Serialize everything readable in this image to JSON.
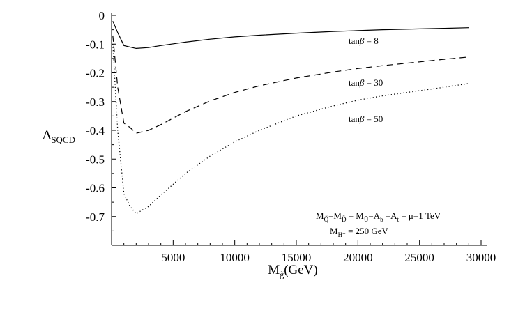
{
  "chart_data": {
    "type": "line",
    "xlabel_main": "M",
    "xlabel_sub": "g̃",
    "xlabel_unit": "(GeV)",
    "ylabel_main": "Δ",
    "ylabel_sub": "SQCD",
    "xlim": [
      0,
      30000
    ],
    "ylim": [
      -0.8,
      0
    ],
    "xticks": [
      5000,
      10000,
      15000,
      20000,
      25000,
      30000
    ],
    "yticks": [
      0,
      -0.1,
      -0.2,
      -0.3,
      -0.4,
      -0.5,
      -0.6,
      -0.7
    ],
    "grid": false,
    "series": [
      {
        "name": "tanβ = 8",
        "label_prefix": "tan",
        "label_symbol": "β",
        "label_value": " = 8",
        "style": "solid",
        "x": [
          100,
          500,
          1000,
          1500,
          2000,
          3000,
          4000,
          6000,
          8000,
          10000,
          12000,
          15000,
          18000,
          20000,
          22000,
          25000,
          27000,
          29000
        ],
        "y": [
          -0.02,
          -0.06,
          -0.105,
          -0.11,
          -0.115,
          -0.112,
          -0.105,
          -0.093,
          -0.083,
          -0.075,
          -0.069,
          -0.062,
          -0.056,
          -0.053,
          -0.05,
          -0.047,
          -0.045,
          -0.043
        ]
      },
      {
        "name": "tanβ = 30",
        "label_prefix": "tan",
        "label_symbol": "β",
        "label_value": " = 30",
        "style": "dashed",
        "x": [
          100,
          500,
          1000,
          1500,
          2000,
          3000,
          4000,
          6000,
          8000,
          10000,
          12000,
          15000,
          18000,
          20000,
          22000,
          25000,
          27000,
          29000
        ],
        "y": [
          -0.07,
          -0.25,
          -0.375,
          -0.39,
          -0.41,
          -0.4,
          -0.38,
          -0.335,
          -0.298,
          -0.268,
          -0.245,
          -0.218,
          -0.197,
          -0.185,
          -0.175,
          -0.162,
          -0.153,
          -0.145
        ]
      },
      {
        "name": "tanβ = 50",
        "label_prefix": "tan",
        "label_symbol": "β",
        "label_value": " = 50",
        "style": "dotted",
        "x": [
          100,
          500,
          1000,
          1500,
          2000,
          3000,
          4000,
          6000,
          8000,
          10000,
          12000,
          15000,
          18000,
          20000,
          22000,
          25000,
          27000,
          29000
        ],
        "y": [
          -0.1,
          -0.4,
          -0.62,
          -0.665,
          -0.69,
          -0.665,
          -0.625,
          -0.55,
          -0.49,
          -0.44,
          -0.4,
          -0.35,
          -0.315,
          -0.295,
          -0.28,
          -0.262,
          -0.25,
          -0.237
        ]
      }
    ],
    "annotations": [
      {
        "id": "ann-masses",
        "text": "M_Q̃=M_D̃ = M_Ũ=A_b =A_t = μ=1 TeV",
        "pieces": [
          {
            "t": "M",
            "sub": false
          },
          {
            "t": "Q̃",
            "sub": true
          },
          {
            "t": "=M",
            "sub": false
          },
          {
            "t": "D̃",
            "sub": true
          },
          {
            "t": " = M",
            "sub": false
          },
          {
            "t": "Ũ",
            "sub": true
          },
          {
            "t": "=A",
            "sub": false
          },
          {
            "t": "b",
            "sub": true
          },
          {
            "t": " =A",
            "sub": false
          },
          {
            "t": "t",
            "sub": true
          },
          {
            "t": " = μ=1 TeV",
            "sub": false
          }
        ]
      },
      {
        "id": "ann-higgs",
        "text": "M_H+ = 250 GeV",
        "pieces": [
          {
            "t": "M",
            "sub": false
          },
          {
            "t": "H⁺",
            "sub": true
          },
          {
            "t": " = 250 GeV",
            "sub": false
          }
        ]
      }
    ]
  }
}
